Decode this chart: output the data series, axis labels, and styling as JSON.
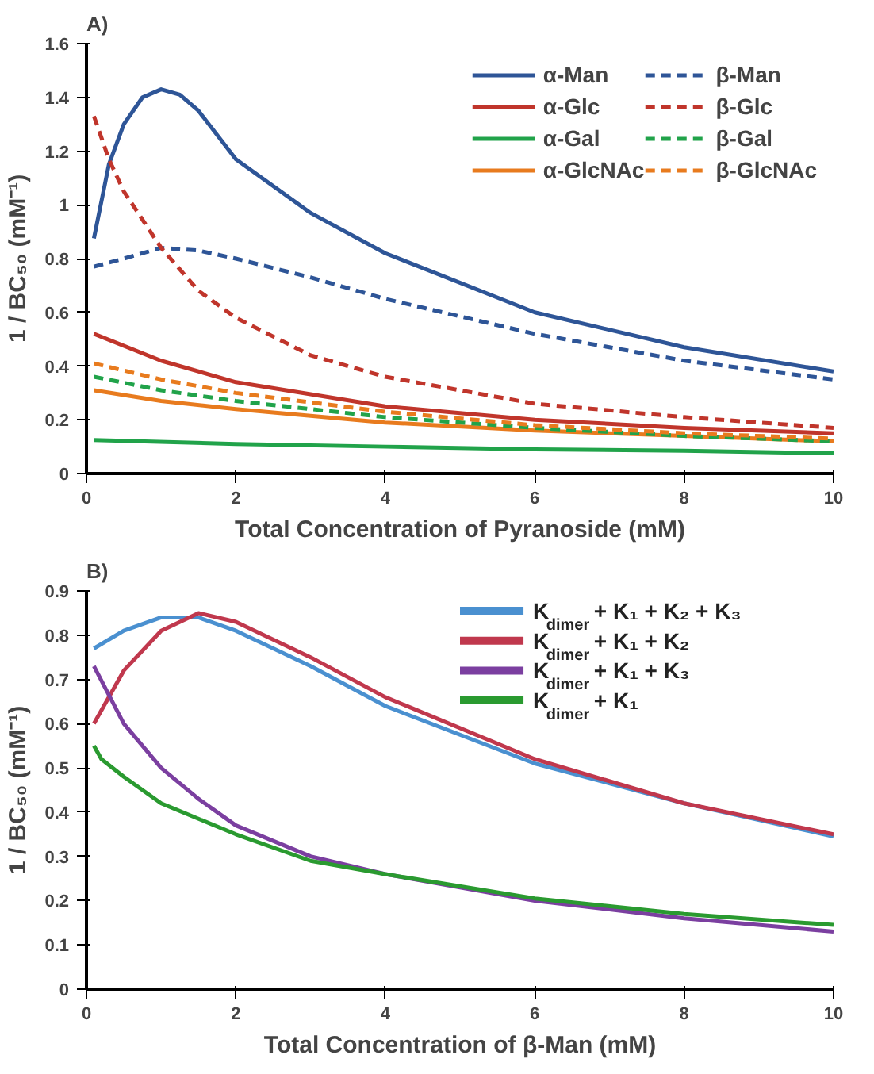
{
  "chart_data": [
    {
      "type": "line",
      "title": "A)",
      "xlabel": "Total Concentration of Pyranoside (mM)",
      "ylabel": "1 / BC₅₀ (mM⁻¹)",
      "xlim": [
        0,
        10
      ],
      "xticks": [
        0,
        2,
        4,
        6,
        8,
        10
      ],
      "ylim": [
        0,
        1.6
      ],
      "yticks": [
        0,
        0.2,
        0.4,
        0.6,
        0.8,
        1,
        1.2,
        1.4,
        1.6
      ],
      "grid": false,
      "legend": "top right",
      "series": [
        {
          "name": "α-Man",
          "color": "#2e5597",
          "line_style": "solid",
          "x": [
            0.1,
            0.3,
            0.5,
            0.75,
            1,
            1.25,
            1.5,
            2,
            3,
            4,
            6,
            8,
            10
          ],
          "values": [
            0.875,
            1.15,
            1.3,
            1.4,
            1.43,
            1.41,
            1.35,
            1.17,
            0.97,
            0.82,
            0.6,
            0.47,
            0.38
          ]
        },
        {
          "name": "α-Glc",
          "color": "#c0352b",
          "line_style": "solid",
          "x": [
            0.1,
            1,
            2,
            4,
            6,
            8,
            10
          ],
          "values": [
            0.52,
            0.42,
            0.34,
            0.25,
            0.2,
            0.17,
            0.15
          ]
        },
        {
          "name": "α-Gal",
          "color": "#21a34a",
          "line_style": "solid",
          "x": [
            0.1,
            2,
            4,
            6,
            8,
            10
          ],
          "values": [
            0.125,
            0.11,
            0.1,
            0.09,
            0.085,
            0.075
          ]
        },
        {
          "name": "α-GlcNAc",
          "color": "#e87b1e",
          "line_style": "solid",
          "x": [
            0.1,
            1,
            2,
            4,
            6,
            8,
            10
          ],
          "values": [
            0.31,
            0.27,
            0.24,
            0.19,
            0.16,
            0.14,
            0.12
          ]
        },
        {
          "name": "β-Man",
          "color": "#2e5597",
          "line_style": "dashed",
          "x": [
            0.1,
            0.5,
            1,
            1.5,
            2,
            3,
            4,
            6,
            8,
            10
          ],
          "values": [
            0.77,
            0.8,
            0.84,
            0.83,
            0.8,
            0.73,
            0.65,
            0.52,
            0.42,
            0.35
          ]
        },
        {
          "name": "β-Glc",
          "color": "#c0352b",
          "line_style": "dashed",
          "x": [
            0.1,
            0.3,
            0.5,
            1,
            1.5,
            2,
            3,
            4,
            6,
            8,
            10
          ],
          "values": [
            1.33,
            1.17,
            1.05,
            0.84,
            0.68,
            0.58,
            0.44,
            0.36,
            0.26,
            0.21,
            0.17
          ]
        },
        {
          "name": "β-Gal",
          "color": "#21a34a",
          "line_style": "dashed",
          "x": [
            0.1,
            1,
            2,
            4,
            6,
            8,
            10
          ],
          "values": [
            0.36,
            0.31,
            0.27,
            0.21,
            0.17,
            0.14,
            0.12
          ]
        },
        {
          "name": "β-GlcNAc",
          "color": "#e87b1e",
          "line_style": "dashed",
          "x": [
            0.1,
            1,
            2,
            4,
            6,
            8,
            10
          ],
          "values": [
            0.41,
            0.35,
            0.3,
            0.23,
            0.18,
            0.15,
            0.13
          ]
        }
      ]
    },
    {
      "type": "line",
      "title": "B)",
      "xlabel": "Total Concentration of β-Man (mM)",
      "ylabel": "1 / BC₅₀ (mM⁻¹)",
      "xlim": [
        0,
        10
      ],
      "xticks": [
        0,
        2,
        4,
        6,
        8,
        10
      ],
      "ylim": [
        0,
        0.9
      ],
      "yticks": [
        0,
        0.1,
        0.2,
        0.3,
        0.4,
        0.5,
        0.6,
        0.7,
        0.8,
        0.9
      ],
      "grid": false,
      "legend": "top right",
      "series": [
        {
          "name": "K$_{dimer}$ + K₁ + K₂ + K₃",
          "color": "#4a90d0",
          "line_style": "solid",
          "x": [
            0.1,
            0.5,
            1,
            1.5,
            2,
            3,
            4,
            6,
            8,
            10
          ],
          "values": [
            0.77,
            0.81,
            0.84,
            0.84,
            0.81,
            0.73,
            0.64,
            0.51,
            0.42,
            0.345
          ]
        },
        {
          "name": "K$_{dimer}$ + K₁ + K₂",
          "color": "#c0384d",
          "line_style": "solid",
          "x": [
            0.1,
            0.5,
            1,
            1.5,
            2,
            3,
            4,
            6,
            8,
            10
          ],
          "values": [
            0.6,
            0.72,
            0.81,
            0.85,
            0.83,
            0.75,
            0.66,
            0.52,
            0.42,
            0.35
          ]
        },
        {
          "name": "K$_{dimer}$ + K₁ + K₃",
          "color": "#7b3fa0",
          "line_style": "solid",
          "x": [
            0.1,
            0.5,
            1,
            1.5,
            2,
            3,
            4,
            6,
            8,
            10
          ],
          "values": [
            0.73,
            0.6,
            0.5,
            0.43,
            0.37,
            0.3,
            0.26,
            0.2,
            0.16,
            0.13
          ]
        },
        {
          "name": "K$_{dimer}$ + K₁",
          "color": "#2a9a30",
          "line_style": "solid",
          "x": [
            0.1,
            0.2,
            0.5,
            1,
            2,
            3,
            4,
            6,
            8,
            10
          ],
          "values": [
            0.55,
            0.52,
            0.48,
            0.42,
            0.35,
            0.29,
            0.26,
            0.205,
            0.17,
            0.145
          ]
        }
      ]
    }
  ]
}
